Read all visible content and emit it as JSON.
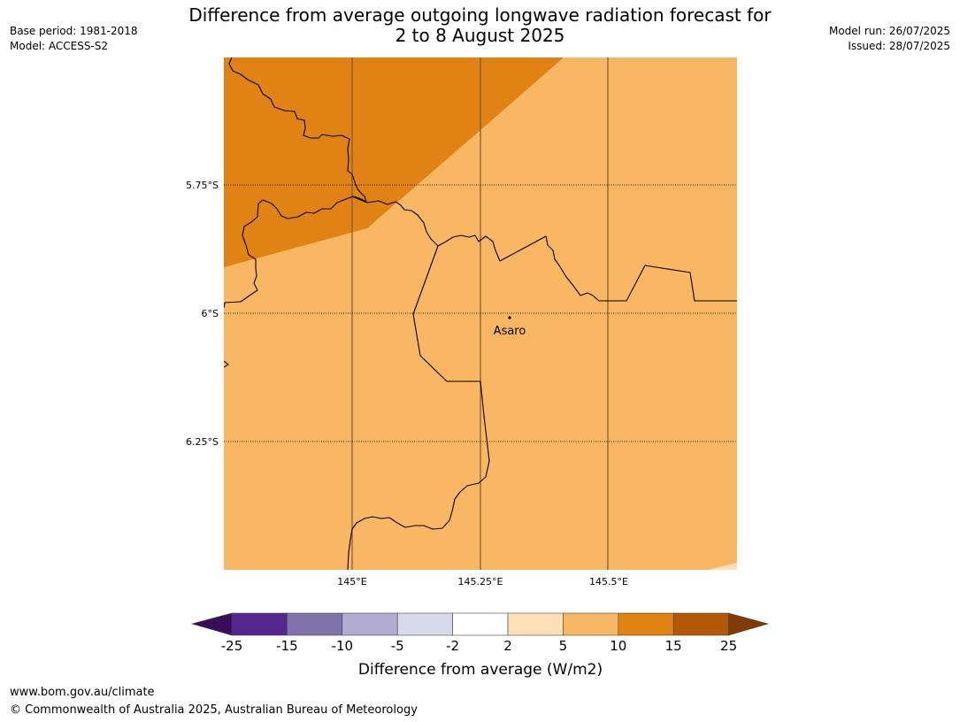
{
  "title_line1": "Difference from average outgoing longwave radiation forecast for",
  "title_line2": "2 to 8 August 2025",
  "base_period": "Base period: 1981-2018",
  "model": "Model: ACCESS-S2",
  "model_run": "Model run: 26/07/2025",
  "issued": "Issued: 28/07/2025",
  "lat_labels": [
    "5.75°S",
    "6°S",
    "6.25°S"
  ],
  "lon_labels": [
    "145°E",
    "145.25°E",
    "145.5°E"
  ],
  "place": "Asaro",
  "colorbar": {
    "ticks": [
      "-25",
      "-15",
      "-10",
      "-5",
      "-2",
      "2",
      "5",
      "10",
      "15",
      "25"
    ],
    "colors": [
      "#3a0c5c",
      "#54278f",
      "#8073ac",
      "#b2abd2",
      "#d8daeb",
      "#ffffff",
      "#fee0b6",
      "#f9b763",
      "#e08214",
      "#b35806",
      "#7f3b08"
    ],
    "label": "Difference from average (W/m2)"
  },
  "footer_url": "www.bom.gov.au/climate",
  "footer_copyright": "© Commonwealth of Australia 2025, Australian Bureau of Meteorology"
}
